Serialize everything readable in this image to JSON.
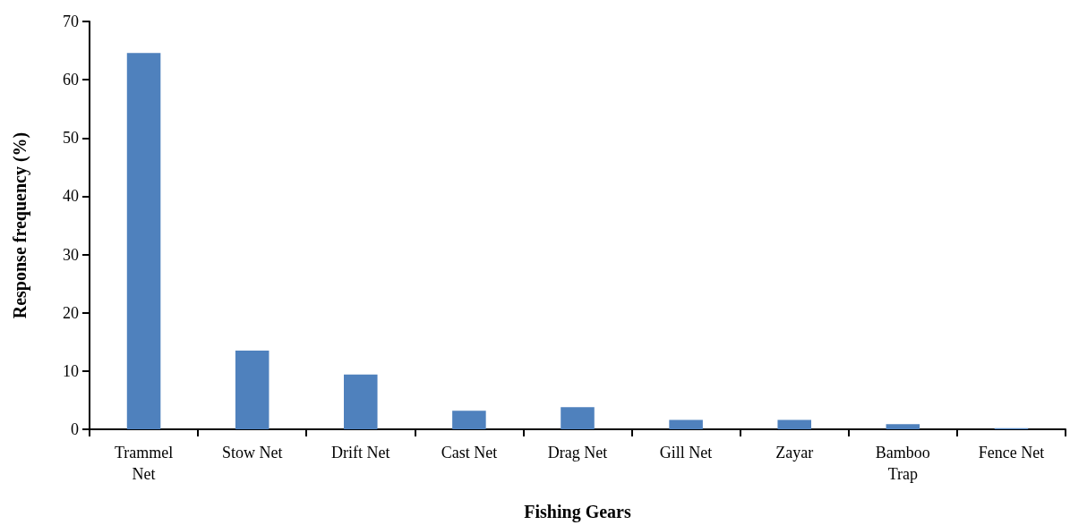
{
  "chart_data": {
    "type": "bar",
    "xlabel": "Fishing Gears",
    "ylabel": "Response frequency (%)",
    "categories": [
      "Trammel\nNet",
      "Stow Net",
      "Drift Net",
      "Cast Net",
      "Drag Net",
      "Gill Net",
      "Zayar",
      "Bamboo\nTrap",
      "Fence Net"
    ],
    "values": [
      64.6,
      13.5,
      9.4,
      3.2,
      3.8,
      1.6,
      1.6,
      0.9,
      0.2
    ],
    "color": "#4f81bd",
    "ylim": [
      0,
      70
    ],
    "yticks": [
      0,
      10,
      20,
      30,
      40,
      50,
      60,
      70
    ],
    "grid": false
  }
}
